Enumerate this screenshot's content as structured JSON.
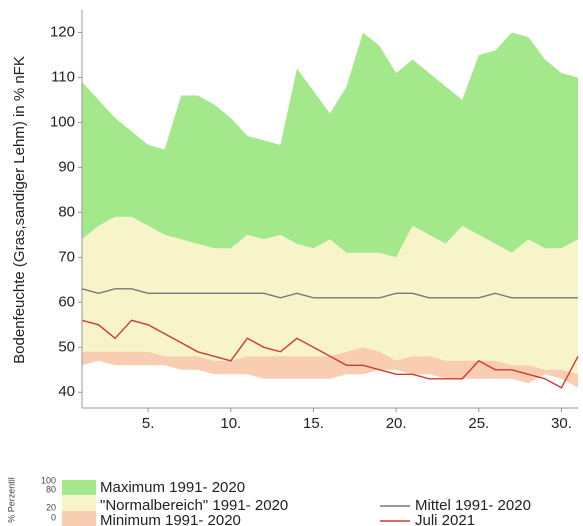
{
  "chart_data": {
    "type": "area",
    "y_label": "Bodenfeuchte (Gras,sandiger Lehm) in % nFK",
    "x": [
      1,
      2,
      3,
      4,
      5,
      6,
      7,
      8,
      9,
      10,
      11,
      12,
      13,
      14,
      15,
      16,
      17,
      18,
      19,
      20,
      21,
      22,
      23,
      24,
      25,
      26,
      27,
      28,
      29,
      30,
      31
    ],
    "xlim": [
      1,
      31
    ],
    "xticks": [
      {
        "value": 5,
        "label": "5."
      },
      {
        "value": 10,
        "label": "10."
      },
      {
        "value": 15,
        "label": "15."
      },
      {
        "value": 20,
        "label": "20."
      },
      {
        "value": 25,
        "label": "25."
      },
      {
        "value": 30,
        "label": "30."
      }
    ],
    "ylim": [
      36.5,
      125
    ],
    "yticks": [
      40,
      50,
      60,
      70,
      80,
      90,
      100,
      110,
      120
    ],
    "percentile_scale": {
      "label": "% Perzentil",
      "ticks": [
        100,
        80,
        20,
        0
      ]
    },
    "series": [
      {
        "name": "Maximum 1991- 2020",
        "color": "#a3e98c",
        "style": "band",
        "values": [
          109,
          105,
          101,
          98,
          95,
          94,
          106,
          106,
          104,
          101,
          97,
          96,
          95,
          112,
          107,
          102,
          108,
          120,
          117,
          111,
          114,
          111,
          108,
          105,
          115,
          116,
          120,
          119,
          114,
          111,
          110
        ]
      },
      {
        "name": "\"Normalbereich\" 1991- 2020",
        "color": "#f7f4c9",
        "style": "band",
        "values": [
          74,
          77,
          79,
          79,
          77,
          75,
          74,
          73,
          72,
          72,
          75,
          74,
          75,
          73,
          72,
          74,
          71,
          71,
          71,
          70,
          77,
          75,
          73,
          77,
          75,
          73,
          71,
          74,
          72,
          72,
          74
        ],
        "lower": [
          49,
          49,
          49,
          49,
          49,
          48,
          48,
          48,
          47,
          47,
          48,
          48,
          48,
          48,
          48,
          48,
          49,
          50,
          49,
          47,
          48,
          48,
          47,
          47,
          47,
          47,
          46,
          46,
          45,
          45,
          44
        ]
      },
      {
        "name": "Minimum 1991- 2020",
        "color": "#f8cdb2",
        "style": "band",
        "values": [
          46,
          47,
          46,
          46,
          46,
          46,
          45,
          45,
          44,
          44,
          44,
          43,
          43,
          43,
          43,
          43,
          44,
          44,
          45,
          45,
          44,
          44,
          43,
          43,
          43,
          43,
          43,
          42,
          44,
          43,
          41
        ]
      },
      {
        "name": "Mittel 1991- 2020",
        "color": "#777777",
        "style": "line",
        "values": [
          63,
          62,
          63,
          63,
          62,
          62,
          62,
          62,
          62,
          62,
          62,
          62,
          61,
          62,
          61,
          61,
          61,
          61,
          61,
          62,
          62,
          61,
          61,
          61,
          61,
          62,
          61,
          61,
          61,
          61,
          61
        ]
      },
      {
        "name": "Juli 2021",
        "color": "#d23a2e",
        "style": "line",
        "values": [
          56,
          55,
          52,
          56,
          55,
          53,
          51,
          49,
          48,
          47,
          52,
          50,
          49,
          52,
          50,
          48,
          46,
          46,
          45,
          44,
          44,
          43,
          43,
          43,
          47,
          45,
          45,
          44,
          43,
          41,
          48
        ]
      }
    ]
  }
}
